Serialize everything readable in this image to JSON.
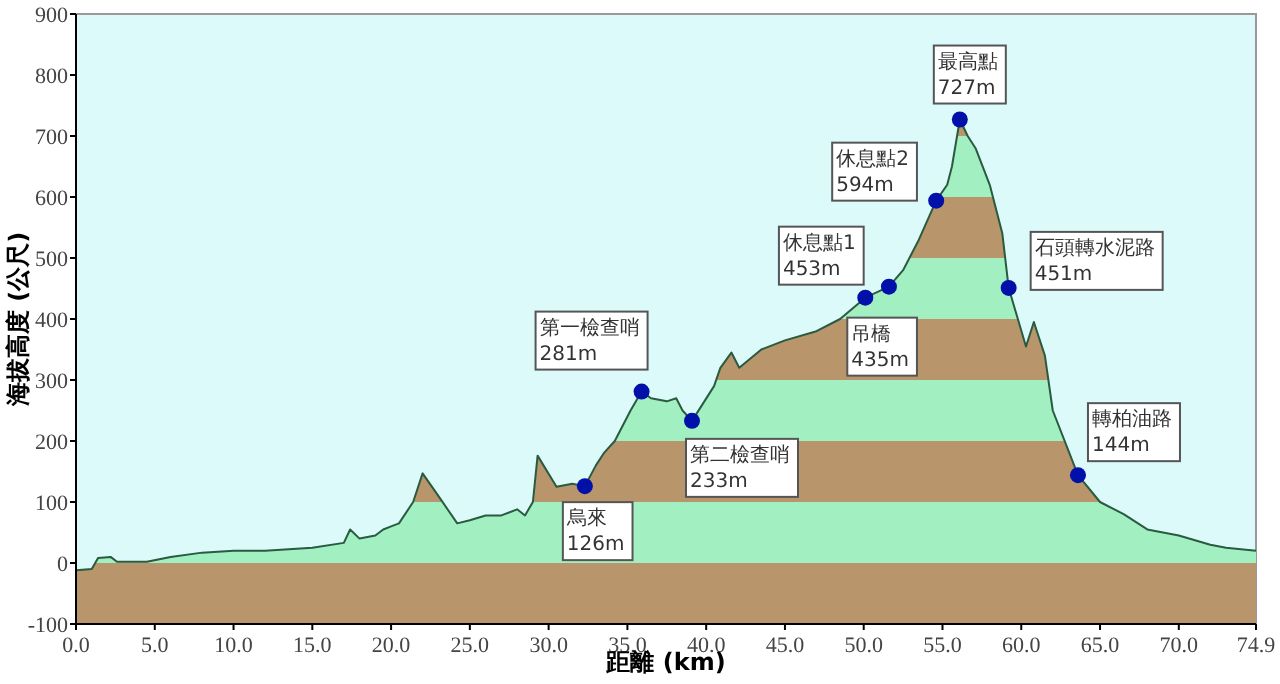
{
  "chart_data": {
    "type": "area",
    "xlabel": "距離 (km)",
    "ylabel": "海拔高度 (公尺)",
    "xlim": [
      0,
      74.9
    ],
    "ylim": [
      -100,
      900
    ],
    "xticks": [
      {
        "value": 0,
        "label": "0.0"
      },
      {
        "value": 5,
        "label": "5.0"
      },
      {
        "value": 10,
        "label": "10.0"
      },
      {
        "value": 15,
        "label": "15.0"
      },
      {
        "value": 20,
        "label": "20.0"
      },
      {
        "value": 25,
        "label": "25.0"
      },
      {
        "value": 30,
        "label": "30.0"
      },
      {
        "value": 35,
        "label": "35.0"
      },
      {
        "value": 40,
        "label": "40.0"
      },
      {
        "value": 45,
        "label": "45.0"
      },
      {
        "value": 50,
        "label": "50.0"
      },
      {
        "value": 55,
        "label": "55.0"
      },
      {
        "value": 60,
        "label": "60.0"
      },
      {
        "value": 65,
        "label": "65.0"
      },
      {
        "value": 70,
        "label": "70.0"
      },
      {
        "value": 74.9,
        "label": "74.9"
      }
    ],
    "yticks": [
      -100,
      0,
      100,
      200,
      300,
      400,
      500,
      600,
      700,
      800,
      900
    ],
    "grid": false,
    "bands": [
      {
        "axis": "y",
        "from": -100,
        "to": 0,
        "color": "#b8956b"
      },
      {
        "axis": "y",
        "from": 100,
        "to": 200,
        "color": "#b8956b"
      },
      {
        "axis": "y",
        "from": 300,
        "to": 400,
        "color": "#b8956b"
      },
      {
        "axis": "y",
        "from": 500,
        "to": 600,
        "color": "#b8956b"
      },
      {
        "axis": "y",
        "from": 700,
        "to": 800,
        "color": "#b8956b"
      }
    ],
    "series": [
      {
        "color": "#a2efc2",
        "x": [
          0,
          1.0,
          1.4,
          2.2,
          2.6,
          4.5,
          6,
          8,
          10,
          12,
          15,
          17,
          17.4,
          18,
          19,
          19.5,
          20,
          20.5,
          21.4,
          22.0,
          23,
          24.2,
          25,
          26,
          27,
          28,
          28.5,
          29,
          29.3,
          30.5,
          31.5,
          32.3,
          33,
          33.5,
          34.2,
          35.2,
          35.9,
          36.5,
          37.5,
          38.1,
          38.5,
          39.1,
          40.5,
          40.9,
          41.6,
          42.1,
          43.5,
          45,
          47,
          48.5,
          50.1,
          51.6,
          52.5,
          53.5,
          54.6,
          55.3,
          55.6,
          56.1,
          56.6,
          57.1,
          58,
          58.8,
          59.2,
          60.3,
          60.8,
          61.5,
          62.0,
          63.6,
          65,
          66.5,
          68,
          70,
          72,
          73,
          74.9
        ],
        "values": [
          -12,
          -10,
          8,
          10,
          2,
          2,
          10,
          17,
          20,
          20,
          25,
          33,
          55,
          40,
          45,
          55,
          60,
          65,
          100,
          147,
          110,
          65,
          70,
          78,
          78,
          88,
          78,
          100,
          176,
          125,
          130,
          126,
          160,
          180,
          200,
          250,
          281,
          270,
          265,
          270,
          250,
          233,
          290,
          320,
          345,
          320,
          350,
          365,
          380,
          400,
          435,
          453,
          480,
          530,
          594,
          620,
          650,
          727,
          700,
          680,
          620,
          540,
          451,
          355,
          395,
          340,
          250,
          144,
          100,
          80,
          55,
          45,
          30,
          25,
          20
        ]
      },
      {
        "type": "scatter",
        "color": "#0010a8",
        "marker": "circle",
        "x": [
          32.3,
          35.9,
          39.1,
          50.1,
          51.6,
          54.6,
          56.1,
          59.2,
          63.6
        ],
        "values": [
          126,
          281,
          233,
          435,
          453,
          594,
          727,
          451,
          144
        ]
      }
    ],
    "annotations": [
      {
        "text": "烏來\n126m",
        "x": 32.3,
        "y": 126
      },
      {
        "text": "第一檢查哨\n281m",
        "x": 35.9,
        "y": 281
      },
      {
        "text": "第二檢查哨\n233m",
        "x": 39.1,
        "y": 233
      },
      {
        "text": "吊橋\n435m",
        "x": 50.1,
        "y": 435
      },
      {
        "text": "休息點1\n453m",
        "x": 51.6,
        "y": 453
      },
      {
        "text": "休息點2\n594m",
        "x": 54.6,
        "y": 594
      },
      {
        "text": "最高點\n727m",
        "x": 56.1,
        "y": 727
      },
      {
        "text": "石頭轉水泥路\n451m",
        "x": 59.2,
        "y": 451
      },
      {
        "text": "轉柏油路\n144m",
        "x": 63.6,
        "y": 144
      }
    ]
  }
}
